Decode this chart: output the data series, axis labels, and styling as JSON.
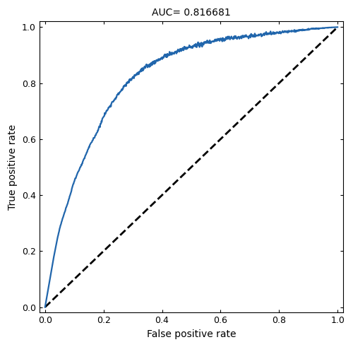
{
  "title": "AUC= 0.816681",
  "xlabel": "False positive rate",
  "ylabel": "True positive rate",
  "xlim": [
    -0.02,
    1.02
  ],
  "ylim": [
    -0.02,
    1.02
  ],
  "xticks": [
    0.0,
    0.2,
    0.4,
    0.6,
    0.8,
    1.0
  ],
  "yticks": [
    0.0,
    0.2,
    0.4,
    0.6,
    0.8,
    1.0
  ],
  "roc_color": "#2166ac",
  "roc_linewidth": 1.6,
  "diag_color": "#000000",
  "diag_linewidth": 2.0,
  "background_color": "#ffffff",
  "title_fontsize": 10,
  "axis_label_fontsize": 10,
  "tick_fontsize": 9,
  "key_fpr": [
    0.0,
    0.01,
    0.03,
    0.05,
    0.08,
    0.1,
    0.13,
    0.15,
    0.18,
    0.2,
    0.25,
    0.3,
    0.35,
    0.4,
    0.5,
    0.6,
    0.7,
    0.8,
    0.9,
    1.0
  ],
  "key_tpr": [
    0.0,
    0.06,
    0.18,
    0.28,
    0.38,
    0.45,
    0.52,
    0.57,
    0.63,
    0.68,
    0.76,
    0.82,
    0.86,
    0.89,
    0.93,
    0.955,
    0.968,
    0.98,
    0.992,
    1.0
  ],
  "seed": 99,
  "n_points": 800
}
